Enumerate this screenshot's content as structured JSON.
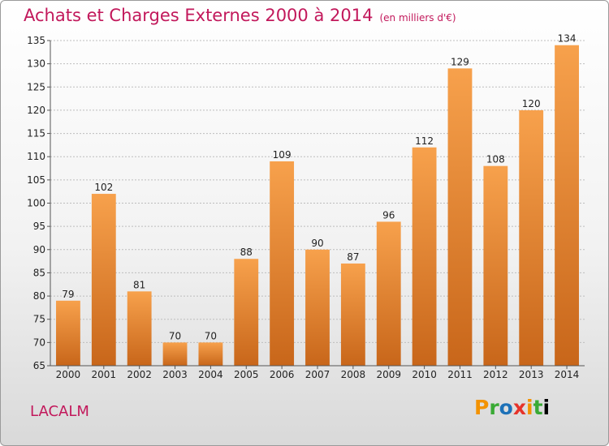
{
  "header": {
    "title": "Achats et Charges Externes 2000 à 2014",
    "unit": "(en milliers d'€)"
  },
  "footer": {
    "commune": "LACALM",
    "logo_text": "Proxiti"
  },
  "colors": {
    "bar_top": "#f7a14c",
    "bar_bottom": "#c8661a",
    "title": "#c2185b",
    "grid": "#bbbbbb"
  },
  "chart_data": {
    "type": "bar",
    "title": "Achats et Charges Externes 2000 à 2014",
    "subtitle": "(en milliers d'€)",
    "categories": [
      "2000",
      "2001",
      "2002",
      "2003",
      "2004",
      "2005",
      "2006",
      "2007",
      "2008",
      "2009",
      "2010",
      "2011",
      "2012",
      "2013",
      "2014"
    ],
    "values": [
      79,
      102,
      81,
      70,
      70,
      88,
      109,
      90,
      87,
      96,
      112,
      129,
      108,
      120,
      134
    ],
    "ylim": [
      65,
      135
    ],
    "yticks": [
      65,
      70,
      75,
      80,
      85,
      90,
      95,
      100,
      105,
      110,
      115,
      120,
      125,
      130,
      135
    ],
    "grid": true,
    "xlabel": "",
    "ylabel": ""
  }
}
